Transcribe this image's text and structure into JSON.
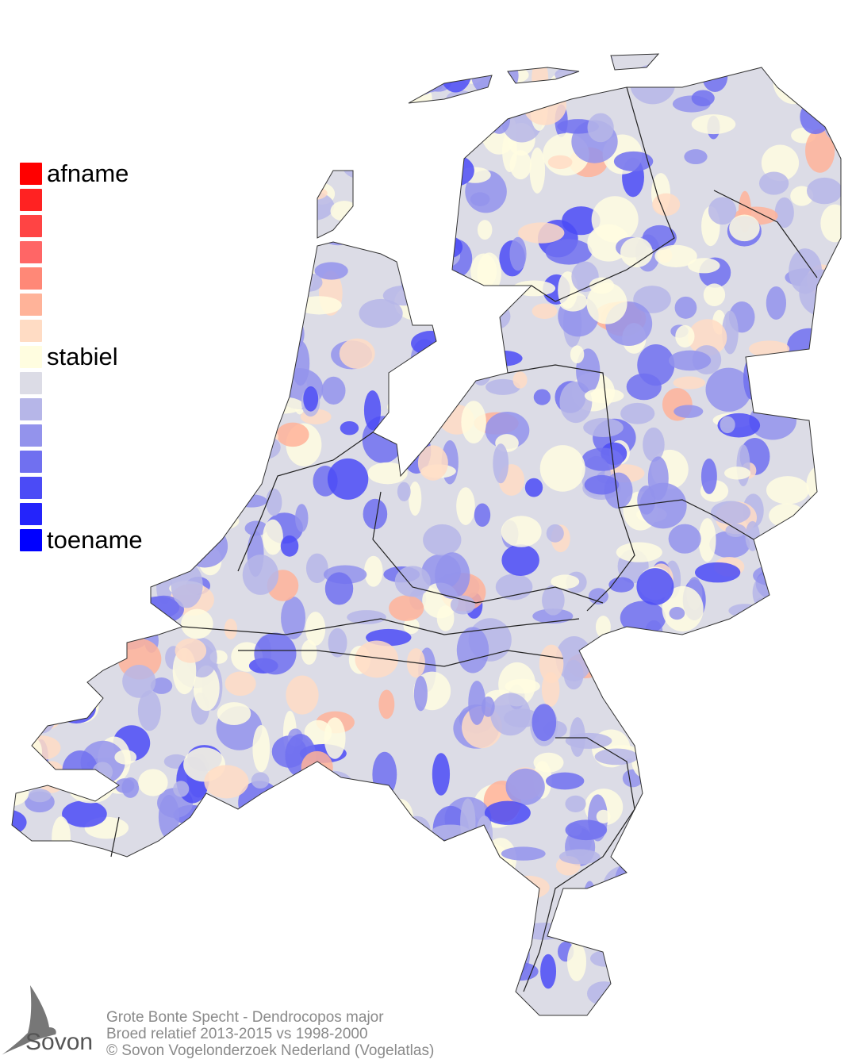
{
  "legend": {
    "labels": {
      "top": "afname",
      "middle": "stabiel",
      "bottom": "toename"
    },
    "colors": [
      "#ff0000",
      "#ff2222",
      "#ff4444",
      "#ff6666",
      "#ff8877",
      "#ffb399",
      "#ffdcc4",
      "#fffde0",
      "#dcdce6",
      "#b6b6e8",
      "#9393ec",
      "#7070f0",
      "#4b4bf6",
      "#2424fb",
      "#0000ff"
    ]
  },
  "footer": {
    "line1": "Grote Bonte Specht - Dendrocopos major",
    "line2": "Broed relatief 2013-2015 vs 1998-2000",
    "line3": "© Sovon Vogelonderzoek Nederland (Vogelatlas)"
  },
  "logo": {
    "text": "Sovon"
  }
}
